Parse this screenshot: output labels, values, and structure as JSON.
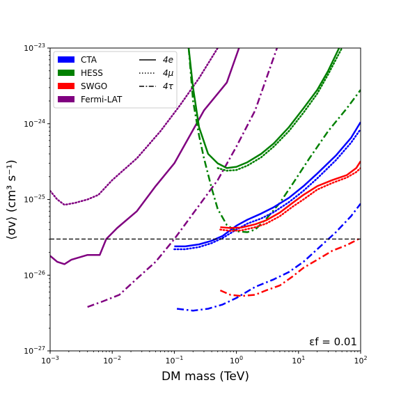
{
  "chart_data": {
    "type": "line",
    "xlabel": "DM mass (TeV)",
    "ylabel": "⟨σv⟩ (cm³ s⁻¹)",
    "xscale": "log",
    "yscale": "log",
    "xlim": [
      0.001,
      100
    ],
    "ylim": [
      1e-27,
      1e-23
    ],
    "x_ticks": [
      {
        "value": 0.001,
        "base": "10",
        "exp": "−3"
      },
      {
        "value": 0.01,
        "base": "10",
        "exp": "−2"
      },
      {
        "value": 0.1,
        "base": "10",
        "exp": "−1"
      },
      {
        "value": 1,
        "base": "10",
        "exp": "0"
      },
      {
        "value": 10,
        "base": "10",
        "exp": "1"
      },
      {
        "value": 100,
        "base": "10",
        "exp": "2"
      }
    ],
    "y_ticks": [
      {
        "value": 1e-27,
        "base": "10",
        "exp": "−27"
      },
      {
        "value": 1e-26,
        "base": "10",
        "exp": "−26"
      },
      {
        "value": 1e-25,
        "base": "10",
        "exp": "−25"
      },
      {
        "value": 1e-24,
        "base": "10",
        "exp": "−24"
      },
      {
        "value": 1e-23,
        "base": "10",
        "exp": "−23"
      }
    ],
    "grid": false,
    "legend_position": "top-left",
    "legend_experiments": [
      {
        "name": "CTA",
        "color": "#0000ff"
      },
      {
        "name": "HESS",
        "color": "#008000"
      },
      {
        "name": "SWGO",
        "color": "#ff0000"
      },
      {
        "name": "Fermi-LAT",
        "color": "#800080"
      }
    ],
    "legend_channels": [
      {
        "name": "4e",
        "style": "solid"
      },
      {
        "name": "4μ",
        "style": "dotted"
      },
      {
        "name": "4τ",
        "style": "dashdot"
      }
    ],
    "reference_line": {
      "y": 3e-26,
      "style": "dashed",
      "color": "#000000"
    },
    "annotation": "εf = 0.01",
    "series": [
      {
        "experiment": "Fermi-LAT",
        "channel": "4e",
        "color": "#800080",
        "style": "solid",
        "x": [
          0.001,
          0.0013,
          0.0017,
          0.0022,
          0.004,
          0.0063,
          0.008,
          0.012,
          0.025,
          0.05,
          0.1,
          0.3,
          0.7,
          1.1
        ],
        "y": [
          1.8e-26,
          1.5e-26,
          1.4e-26,
          1.6e-26,
          1.85e-26,
          1.85e-26,
          3e-26,
          4.2e-26,
          7e-26,
          1.5e-25,
          3e-25,
          1.5e-24,
          3.5e-24,
          1e-23
        ]
      },
      {
        "experiment": "Fermi-LAT",
        "channel": "4μ",
        "color": "#800080",
        "style": "dotted",
        "x": [
          0.001,
          0.0013,
          0.0017,
          0.0025,
          0.004,
          0.006,
          0.01,
          0.025,
          0.06,
          0.12,
          0.25,
          0.5
        ],
        "y": [
          1.3e-25,
          1e-25,
          8.5e-26,
          9e-26,
          1e-25,
          1.15e-25,
          1.8e-25,
          3.5e-25,
          8e-25,
          1.7e-24,
          4e-24,
          1e-23
        ]
      },
      {
        "experiment": "Fermi-LAT",
        "channel": "4τ",
        "color": "#800080",
        "style": "dashdot",
        "x": [
          0.004,
          0.007,
          0.013,
          0.025,
          0.05,
          0.1,
          0.2,
          0.5,
          1,
          2,
          4.5
        ],
        "y": [
          3.8e-27,
          4.5e-27,
          5.5e-27,
          9e-27,
          1.5e-26,
          3e-26,
          6.5e-26,
          1.8e-25,
          5e-25,
          1.5e-24,
          1e-23
        ]
      },
      {
        "experiment": "HESS",
        "channel": "4e",
        "color": "#008000",
        "style": "solid",
        "x": [
          0.17,
          0.2,
          0.25,
          0.35,
          0.5,
          0.7,
          1,
          1.5,
          2.5,
          4,
          7,
          12,
          20,
          30,
          45
        ],
        "y": [
          1e-23,
          3e-24,
          9e-25,
          4e-25,
          3e-25,
          2.6e-25,
          2.7e-25,
          3.1e-25,
          4e-25,
          5.5e-25,
          9e-25,
          1.6e-24,
          2.8e-24,
          5e-24,
          1e-23
        ]
      },
      {
        "experiment": "HESS",
        "channel": "4μ",
        "color": "#008000",
        "style": "dotted",
        "x": [
          0.5,
          0.7,
          1,
          1.5,
          2.5,
          4,
          7,
          12,
          20,
          30,
          50
        ],
        "y": [
          2.6e-25,
          2.4e-25,
          2.45e-25,
          2.8e-25,
          3.6e-25,
          5e-25,
          8e-25,
          1.4e-24,
          2.5e-24,
          4.5e-24,
          1e-23
        ]
      },
      {
        "experiment": "HESS",
        "channel": "4τ",
        "color": "#008000",
        "style": "dashdot",
        "x": [
          0.17,
          0.2,
          0.25,
          0.3,
          0.4,
          0.5,
          0.7,
          1,
          1.5,
          2,
          3,
          5,
          8,
          15,
          30,
          60,
          100
        ],
        "y": [
          1e-23,
          2e-24,
          7e-25,
          3.5e-25,
          1.4e-25,
          7.5e-26,
          4.6e-26,
          3.8e-26,
          3.7e-26,
          4e-26,
          5.5e-26,
          9e-26,
          1.6e-25,
          3.5e-25,
          8e-25,
          1.6e-24,
          2.8e-24
        ]
      },
      {
        "experiment": "CTA",
        "channel": "4e",
        "color": "#0000ff",
        "style": "solid",
        "x": [
          0.1,
          0.15,
          0.25,
          0.4,
          0.6,
          1,
          1.5,
          2.5,
          4,
          7,
          12,
          20,
          40,
          70,
          100
        ],
        "y": [
          2.4e-26,
          2.4e-26,
          2.55e-26,
          2.85e-26,
          3.3e-26,
          4.5e-26,
          5.4e-26,
          6.5e-26,
          7.9e-26,
          1.05e-25,
          1.5e-25,
          2.2e-25,
          3.8e-25,
          6.5e-25,
          1.05e-24
        ]
      },
      {
        "experiment": "CTA",
        "channel": "4μ",
        "color": "#0000ff",
        "style": "dotted",
        "x": [
          0.1,
          0.15,
          0.25,
          0.4,
          0.6,
          1,
          1.5,
          2.5,
          4,
          7,
          12,
          20,
          40,
          70,
          100
        ],
        "y": [
          2.2e-26,
          2.2e-26,
          2.35e-26,
          2.65e-26,
          3.1e-26,
          4e-26,
          4.8e-26,
          5.6e-26,
          6.8e-26,
          9.2e-26,
          1.3e-25,
          1.9e-25,
          3.3e-25,
          5.6e-25,
          8.5e-25
        ]
      },
      {
        "experiment": "CTA",
        "channel": "4τ",
        "color": "#0000ff",
        "style": "dashdot",
        "x": [
          0.11,
          0.2,
          0.35,
          0.6,
          1,
          2,
          4,
          7,
          12,
          20,
          40,
          70,
          100
        ],
        "y": [
          3.6e-27,
          3.4e-27,
          3.6e-27,
          4.1e-27,
          5e-27,
          7e-27,
          8.8e-27,
          1.1e-26,
          1.5e-26,
          2.2e-26,
          3.7e-26,
          6e-26,
          8.8e-26
        ]
      },
      {
        "experiment": "SWGO",
        "channel": "4e",
        "color": "#ff0000",
        "style": "solid",
        "x": [
          0.55,
          0.8,
          1.2,
          2,
          3,
          5,
          8,
          12,
          20,
          35,
          60,
          85,
          100
        ],
        "y": [
          4.3e-26,
          4.2e-26,
          4.25e-26,
          4.7e-26,
          5.3e-26,
          6.7e-26,
          9e-26,
          1.15e-25,
          1.5e-25,
          1.8e-25,
          2.1e-25,
          2.6e-25,
          3.2e-25
        ]
      },
      {
        "experiment": "SWGO",
        "channel": "4μ",
        "color": "#ff0000",
        "style": "dotted",
        "x": [
          0.55,
          0.8,
          1.2,
          2,
          3,
          5,
          8,
          12,
          20,
          35,
          60,
          85,
          100
        ],
        "y": [
          4e-26,
          3.85e-26,
          3.9e-26,
          4.3e-26,
          4.8e-26,
          6e-26,
          8e-26,
          1e-25,
          1.35e-25,
          1.65e-25,
          1.95e-25,
          2.3e-25,
          2.6e-25
        ]
      },
      {
        "experiment": "SWGO",
        "channel": "4τ",
        "color": "#ff0000",
        "style": "dashdot",
        "x": [
          0.55,
          0.8,
          1.2,
          2,
          3,
          5,
          8,
          12,
          20,
          35,
          60,
          100
        ],
        "y": [
          6.3e-27,
          5.5e-27,
          5.3e-27,
          5.5e-27,
          6.3e-27,
          7.3e-27,
          9.6e-27,
          1.25e-26,
          1.6e-26,
          2.1e-26,
          2.5e-26,
          3.1e-26
        ]
      }
    ]
  }
}
